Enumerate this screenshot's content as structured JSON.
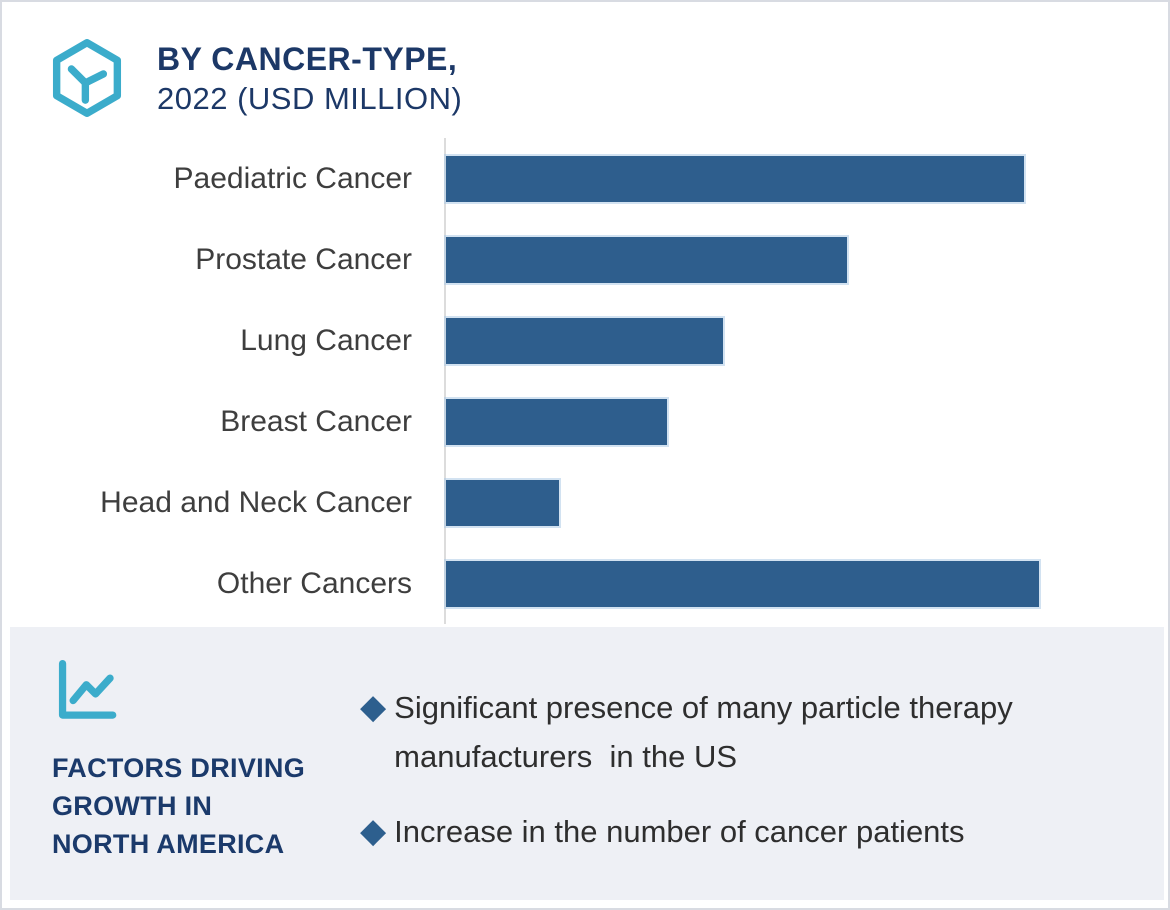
{
  "header": {
    "logo_icon": "hexagon-y-logo-icon",
    "title_line1": "BY CANCER-TYPE,",
    "title_line2": "2022 (USD MILLION)"
  },
  "chart_data": {
    "type": "bar",
    "orientation": "horizontal",
    "title": "BY CANCER-TYPE, 2022 (USD MILLION)",
    "categories": [
      "Paediatric Cancer",
      "Prostate Cancer",
      "Lung Cancer",
      "Breast Cancer",
      "Head and Neck Cancer",
      "Other Cancers"
    ],
    "series": [
      {
        "name": "2022 (USD Million)",
        "values_pct_of_longest_bar": [
          97.5,
          67.6,
          46.7,
          37.3,
          19.1,
          100
        ]
      }
    ],
    "data_labels_visible": false,
    "value_axis_tick_labels": [],
    "xlabel": "",
    "ylabel": "",
    "grid": "off",
    "legend": "none",
    "bar_color": "#2E5E8D",
    "axis_line_color": "#DCDCDC"
  },
  "factors_panel": {
    "icon": "line-chart-icon",
    "heading_lines": [
      "FACTORS DRIVING",
      "GROWTH IN",
      "NORTH AMERICA"
    ],
    "bullet_marker": "diamond-bullet-icon",
    "bullets": [
      "Significant presence of many particle therapy manufacturers  in the US",
      "Increase in the number of cancer patients"
    ]
  },
  "colors": {
    "accent_teal": "#3BACCB",
    "navy": "#1C3867",
    "bar_blue": "#2E5E8D",
    "panel_background": "#EEF0F5",
    "label_gray": "#3E3E3E",
    "page_border": "#D8DBE2"
  }
}
